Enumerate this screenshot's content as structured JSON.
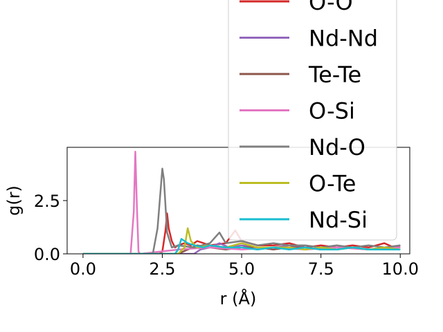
{
  "chart_data": {
    "type": "line",
    "xlabel": "r (Å)",
    "ylabel": "g(r)",
    "xlim": [
      -0.5,
      10.3
    ],
    "ylim": [
      0,
      5.0
    ],
    "xticks": [
      0.0,
      2.5,
      5.0,
      7.5,
      10.0
    ],
    "xtick_labels": [
      "0.0",
      "2.5",
      "5.0",
      "7.5",
      "10.0"
    ],
    "yticks": [
      0.0,
      2.5
    ],
    "ytick_labels": [
      "0.0",
      "2.5"
    ],
    "grid": false,
    "legend_placement": "upper-right",
    "series": [
      {
        "name": "O-O",
        "color": "#d62728",
        "x": [
          0,
          2.4,
          2.5,
          2.6,
          2.65,
          2.7,
          2.8,
          2.9,
          3.0,
          3.2,
          3.4,
          3.6,
          3.8,
          4.0,
          4.5,
          4.8,
          5.0,
          5.5,
          6.0,
          6.5,
          7.0,
          7.5,
          8.0,
          8.5,
          9.0,
          9.5,
          9.8,
          10.0
        ],
        "y": [
          0,
          0,
          0.1,
          1.1,
          1.9,
          1.2,
          0.6,
          0.3,
          0.4,
          0.5,
          0.4,
          0.6,
          0.5,
          0.4,
          0.5,
          1.1,
          0.6,
          0.4,
          0.4,
          0.5,
          0.3,
          0.4,
          0.3,
          0.4,
          0.3,
          0.5,
          0.3,
          0.4
        ]
      },
      {
        "name": "Nd-Nd",
        "color": "#9467bd",
        "x": [
          0,
          3.5,
          3.7,
          4.0,
          4.3,
          4.6,
          5.0,
          5.5,
          6.0,
          6.5,
          7.0,
          7.5,
          8.0,
          8.5,
          9.0,
          9.5,
          10.0
        ],
        "y": [
          0,
          0,
          0.2,
          0.3,
          0.5,
          0.3,
          0.4,
          0.3,
          0.3,
          0.4,
          0.3,
          0.2,
          0.3,
          0.3,
          0.2,
          0.3,
          0.3
        ]
      },
      {
        "name": "Te-Te",
        "color": "#8c564b",
        "x": [
          0,
          3.0,
          3.3,
          3.6,
          4.0,
          4.5,
          5.0,
          5.5,
          6.0,
          6.5,
          7.0,
          7.5,
          8.0,
          8.5,
          9.0,
          9.5,
          10.0
        ],
        "y": [
          0,
          0,
          0.2,
          0.4,
          0.3,
          0.2,
          0.3,
          0.3,
          0.2,
          0.3,
          0.3,
          0.2,
          0.2,
          0.3,
          0.2,
          0.2,
          0.2
        ]
      },
      {
        "name": "O-Si",
        "color": "#e377c2",
        "x": [
          0,
          1.5,
          1.6,
          1.65,
          1.7,
          1.75,
          1.8,
          3.0,
          4.0,
          5.0,
          6.0,
          7.0,
          8.0,
          9.0,
          10.0
        ],
        "y": [
          0,
          0,
          2.0,
          4.8,
          2.2,
          0.1,
          0,
          0.2,
          0.3,
          0.2,
          0.3,
          0.2,
          0.3,
          0.2,
          0.3
        ]
      },
      {
        "name": "Nd-O",
        "color": "#7f7f7f",
        "x": [
          0,
          2.2,
          2.35,
          2.5,
          2.55,
          2.65,
          2.8,
          3.0,
          3.5,
          4.0,
          4.3,
          4.5,
          5.0,
          5.5,
          6.0,
          6.5,
          7.0,
          7.5,
          8.0,
          8.5,
          9.0,
          9.5,
          10.0
        ],
        "y": [
          0,
          0,
          1.2,
          4.0,
          3.5,
          1.0,
          0.3,
          0.4,
          0.3,
          0.5,
          1.0,
          0.5,
          0.6,
          0.4,
          0.5,
          0.4,
          0.4,
          0.3,
          0.4,
          0.3,
          0.4,
          0.3,
          0.4
        ]
      },
      {
        "name": "O-Te",
        "color": "#bcbd22",
        "x": [
          0,
          3.0,
          3.2,
          3.3,
          3.4,
          3.6,
          4.0,
          4.5,
          5.0,
          5.5,
          6.0,
          6.5,
          7.0,
          7.5,
          8.0,
          8.5,
          9.0,
          9.5,
          10.0
        ],
        "y": [
          0,
          0,
          0.3,
          1.2,
          0.6,
          0.3,
          0.4,
          0.3,
          0.5,
          0.3,
          0.3,
          0.3,
          0.2,
          0.3,
          0.2,
          0.3,
          0.2,
          0.3,
          0.2
        ]
      },
      {
        "name": "Nd-Si",
        "color": "#17becf",
        "x": [
          0,
          2.9,
          3.0,
          3.1,
          3.3,
          3.5,
          3.8,
          4.0,
          4.5,
          5.0,
          5.5,
          6.0,
          6.5,
          7.0,
          7.5,
          8.0,
          8.5,
          9.0,
          9.5,
          10.0
        ],
        "y": [
          0,
          0,
          0.2,
          0.7,
          0.5,
          0.4,
          0.3,
          0.4,
          0.3,
          0.3,
          0.2,
          0.3,
          0.2,
          0.3,
          0.2,
          0.2,
          0.3,
          0.2,
          0.2,
          0.2
        ]
      }
    ]
  }
}
